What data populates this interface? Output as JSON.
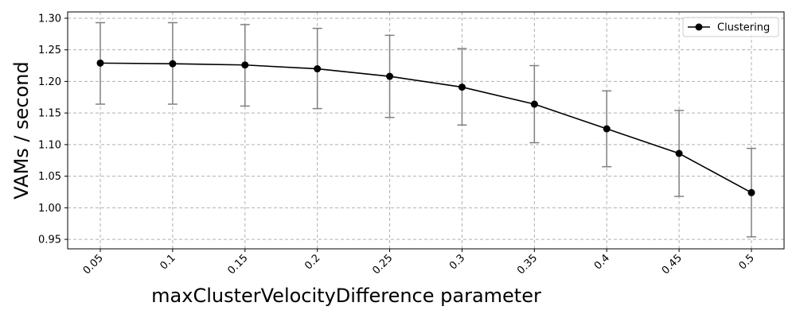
{
  "chart_data": {
    "type": "line",
    "title": "",
    "xlabel": "maxClusterVelocityDifference parameter",
    "ylabel": "VAMs / second",
    "categories": [
      "0.05",
      "0.1",
      "0.15",
      "0.2",
      "0.25",
      "0.3",
      "0.35",
      "0.4",
      "0.45",
      "0.5"
    ],
    "ylim": [
      0.935,
      1.31
    ],
    "yticks": [
      "0.95",
      "1.00",
      "1.05",
      "1.10",
      "1.15",
      "1.20",
      "1.25",
      "1.30"
    ],
    "grid": true,
    "legend_position": "top-right",
    "series": [
      {
        "name": "Clustering",
        "color": "#000000",
        "errorbar_color": "#808080",
        "values": [
          1.229,
          1.228,
          1.226,
          1.22,
          1.208,
          1.191,
          1.164,
          1.125,
          1.086,
          1.024
        ],
        "error_low": [
          1.164,
          1.164,
          1.161,
          1.157,
          1.143,
          1.131,
          1.103,
          1.065,
          1.018,
          0.954
        ],
        "error_high": [
          1.293,
          1.293,
          1.29,
          1.284,
          1.273,
          1.252,
          1.225,
          1.185,
          1.154,
          1.094
        ]
      }
    ]
  }
}
